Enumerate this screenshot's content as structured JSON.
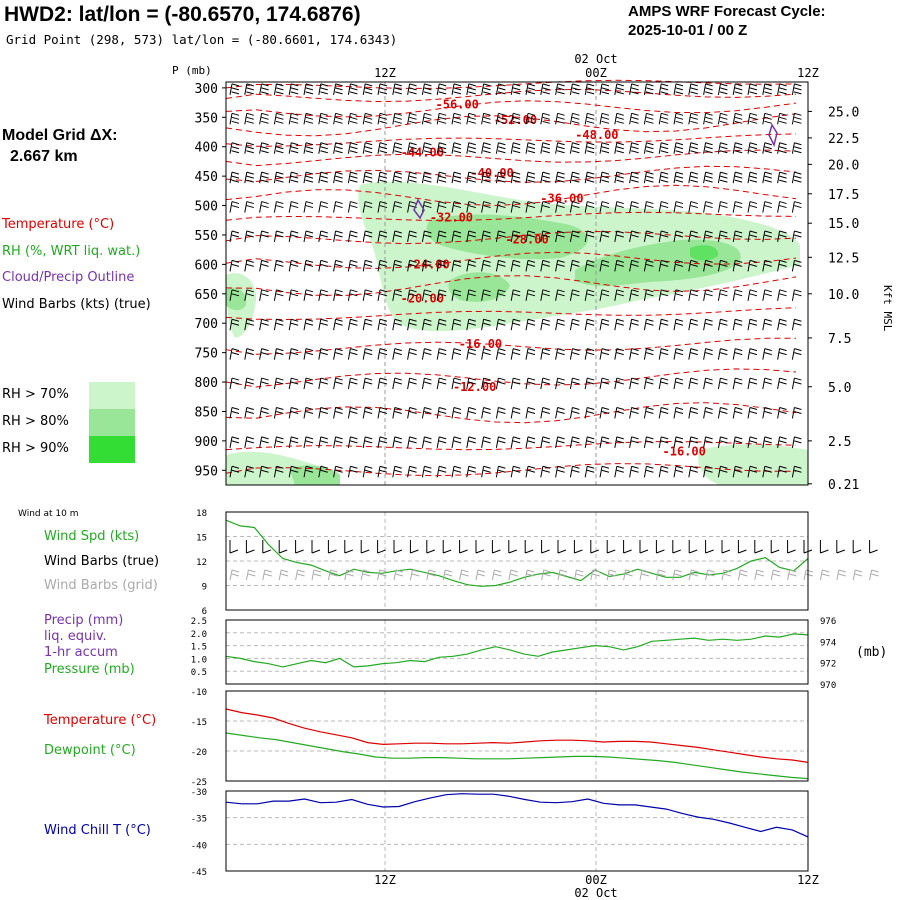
{
  "header": {
    "title": "HWD2:  lat/lon = (-80.6570, 174.6876)",
    "grid_point": "Grid Point (298, 573) lat/lon = (-80.6601, 174.6343)",
    "cycle_title": "AMPS WRF Forecast Cycle:",
    "cycle_value": "2025-10-01 / 00  Z"
  },
  "model_grid": {
    "label": "Model Grid ΔX:",
    "value": "2.667 km"
  },
  "legend": {
    "temperature": "Temperature (°C)",
    "rh": "RH (%, WRT liq. wat.)",
    "cloud": "Cloud/Precip Outline",
    "wind_barbs": "Wind Barbs (kts) (true)",
    "rh70": "RH > 70%",
    "rh80": "RH > 80%",
    "rh90": "RH > 90%"
  },
  "colors": {
    "temp": "#dd0000",
    "rh": "#22aa22",
    "cloud": "#7733aa",
    "rh70": "#ccf5cc",
    "rh80": "#99e699",
    "rh90": "#33dd33",
    "wind_true": "#000000",
    "wind_grid": "#aaaaaa",
    "chill": "#0000aa"
  },
  "time_axis": {
    "labels": [
      "12Z",
      "00Z",
      "12Z"
    ],
    "date_label": "02 Oct"
  },
  "chart_data": [
    {
      "type": "contour",
      "name": "cross-section",
      "ylabel": "P (mb)",
      "y2label": "Kft MSL",
      "pressure_levels": [
        300,
        350,
        400,
        450,
        500,
        550,
        600,
        650,
        700,
        750,
        800,
        850,
        900,
        950
      ],
      "pressure_range": [
        290,
        975
      ],
      "height_ticks": [
        {
          "p": 340,
          "label": "25.0"
        },
        {
          "p": 385,
          "label": "22.5"
        },
        {
          "p": 430,
          "label": "20.0"
        },
        {
          "p": 480,
          "label": "17.5"
        },
        {
          "p": 530,
          "label": "15.0"
        },
        {
          "p": 588,
          "label": "12.5"
        },
        {
          "p": 650,
          "label": "10.0"
        },
        {
          "p": 725,
          "label": "7.5"
        },
        {
          "p": 808,
          "label": "5.0"
        },
        {
          "p": 900,
          "label": "2.5"
        },
        {
          "p": 973,
          "label": "0.21"
        }
      ],
      "temperature_labels": [
        {
          "t": 0.36,
          "p": 328,
          "label": "-56.00"
        },
        {
          "t": 0.46,
          "p": 355,
          "label": "-52.00"
        },
        {
          "t": 0.6,
          "p": 380,
          "label": "-48.00"
        },
        {
          "t": 0.3,
          "p": 410,
          "label": "-44.00"
        },
        {
          "t": 0.42,
          "p": 445,
          "label": "-40.00"
        },
        {
          "t": 0.54,
          "p": 488,
          "label": "-36.00"
        },
        {
          "t": 0.35,
          "p": 520,
          "label": "-32.00"
        },
        {
          "t": 0.48,
          "p": 558,
          "label": "-28.00"
        },
        {
          "t": 0.31,
          "p": 600,
          "label": "-24.00"
        },
        {
          "t": 0.3,
          "p": 658,
          "label": "-20.00"
        },
        {
          "t": 0.4,
          "p": 735,
          "label": "-16.00"
        },
        {
          "t": 0.39,
          "p": 808,
          "label": "-12.00"
        },
        {
          "t": 0.75,
          "p": 918,
          "label": "-16.00"
        }
      ]
    },
    {
      "type": "line",
      "name": "wind-10m",
      "title": "Wind at 10 m",
      "ylim": [
        6,
        18
      ],
      "yticks": [
        6,
        9,
        12,
        15,
        18
      ],
      "series": [
        {
          "name": "Wind Spd (kts)",
          "color": "#22aa22",
          "values": [
            17,
            16.3,
            16.1,
            14.0,
            12.3,
            11.8,
            11.5,
            10.8,
            10.2,
            11.0,
            10.6,
            10.5,
            10.8,
            11.0,
            10.6,
            10.2,
            9.6,
            9.1,
            8.9,
            9.0,
            9.4,
            10.0,
            10.4,
            10.6,
            10.1,
            9.6,
            10.9,
            10.1,
            10.4,
            11.0,
            10.5,
            10.0,
            10.0,
            10.6,
            10.3,
            10.5,
            11.1,
            12.0,
            12.4,
            11.2,
            10.8,
            12.3
          ]
        }
      ],
      "legend": [
        "Wind Spd (kts)",
        "Wind Barbs (true)",
        "Wind Barbs (grid)"
      ]
    },
    {
      "type": "line",
      "name": "precip-pressure",
      "ylim": [
        0,
        2.5
      ],
      "yticks": [
        0.5,
        1.0,
        1.5,
        2.0,
        2.5
      ],
      "y2lim": [
        970,
        976
      ],
      "y2ticks": [
        970,
        972,
        974,
        976
      ],
      "y2label": "(mb)",
      "series": [
        {
          "name": "Pressure (mb)",
          "axis": "y2",
          "color": "#22aa22",
          "values": [
            972.6,
            972.4,
            972.1,
            971.9,
            971.6,
            971.9,
            972.2,
            972.0,
            972.4,
            971.6,
            971.7,
            971.9,
            972.0,
            972.2,
            972.1,
            972.5,
            972.6,
            972.8,
            973.2,
            973.5,
            973.2,
            972.8,
            972.6,
            973.0,
            973.2,
            973.4,
            973.6,
            973.5,
            973.2,
            973.5,
            974.0,
            974.1,
            974.2,
            974.3,
            974.1,
            974.2,
            974.1,
            974.2,
            974.5,
            974.4,
            974.7,
            974.6
          ]
        },
        {
          "name": "Precip (mm)",
          "axis": "y",
          "color": "#7733aa",
          "values": []
        }
      ],
      "legend": [
        "Precip (mm)",
        "liq. equiv.",
        "1-hr accum",
        "Pressure (mb)"
      ]
    },
    {
      "type": "line",
      "name": "temp-dewpoint",
      "ylim": [
        -25,
        -10
      ],
      "yticks": [
        -25,
        -20,
        -15,
        -10
      ],
      "series": [
        {
          "name": "Temperature (°C)",
          "color": "#dd0000",
          "values": [
            -13.0,
            -13.6,
            -14.0,
            -14.5,
            -15.4,
            -16.2,
            -16.8,
            -17.3,
            -17.8,
            -18.6,
            -18.9,
            -18.8,
            -18.7,
            -18.7,
            -18.8,
            -18.8,
            -18.7,
            -18.6,
            -18.7,
            -18.5,
            -18.3,
            -18.2,
            -18.2,
            -18.3,
            -18.5,
            -18.4,
            -18.4,
            -18.5,
            -18.8,
            -19.1,
            -19.4,
            -19.8,
            -20.2,
            -20.6,
            -21.0,
            -21.3,
            -21.5,
            -21.9
          ]
        },
        {
          "name": "Dewpoint (°C)",
          "color": "#22aa22",
          "values": [
            -17.0,
            -17.4,
            -17.8,
            -18.1,
            -18.6,
            -19.1,
            -19.6,
            -20.1,
            -20.5,
            -21.0,
            -21.2,
            -21.2,
            -21.1,
            -21.1,
            -21.2,
            -21.3,
            -21.3,
            -21.3,
            -21.2,
            -21.1,
            -21.0,
            -20.9,
            -20.9,
            -21.0,
            -21.2,
            -21.4,
            -21.6,
            -21.9,
            -22.3,
            -22.7,
            -23.1,
            -23.5,
            -23.8,
            -24.1,
            -24.4,
            -24.6
          ]
        }
      ],
      "legend": [
        "Temperature (°C)",
        "Dewpoint (°C)"
      ]
    },
    {
      "type": "line",
      "name": "wind-chill",
      "ylim": [
        -45,
        -30
      ],
      "yticks": [
        -45,
        -40,
        -35,
        -30
      ],
      "series": [
        {
          "name": "Wind Chill T (°C)",
          "color": "#0000aa",
          "values": [
            -32.1,
            -32.4,
            -32.4,
            -31.9,
            -31.9,
            -31.5,
            -32.2,
            -32.1,
            -31.6,
            -32.5,
            -33.0,
            -32.9,
            -32.0,
            -31.3,
            -30.7,
            -30.5,
            -30.6,
            -30.6,
            -31.0,
            -31.6,
            -32.1,
            -32.2,
            -32.0,
            -31.5,
            -32.3,
            -32.6,
            -32.6,
            -33.0,
            -33.4,
            -34.2,
            -34.9,
            -35.3,
            -36.0,
            -36.8,
            -37.6,
            -36.8,
            -37.3,
            -38.6
          ]
        }
      ],
      "legend": [
        "Wind Chill T (°C)"
      ]
    }
  ]
}
